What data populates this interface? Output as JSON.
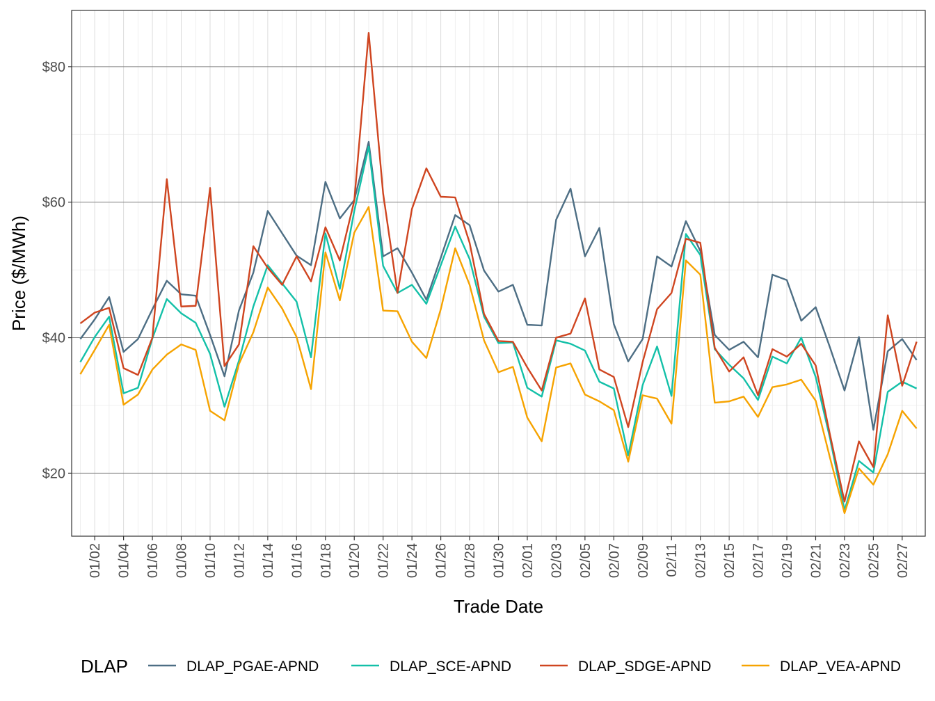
{
  "chart_data": {
    "type": "line",
    "xlabel": "Trade Date",
    "ylabel": "Price ($/MWh)",
    "ylim": [
      10.7,
      88.3
    ],
    "y_ticks": [
      20,
      40,
      60,
      80
    ],
    "y_tick_labels": [
      "$20",
      "$40",
      "$60",
      "$80"
    ],
    "x_tick_labels": [
      "01/02",
      "01/04",
      "01/06",
      "01/08",
      "01/10",
      "01/12",
      "01/14",
      "01/16",
      "01/18",
      "01/20",
      "01/22",
      "01/24",
      "01/26",
      "01/28",
      "01/30",
      "02/01",
      "02/03",
      "02/05",
      "02/07",
      "02/09",
      "02/11",
      "02/13",
      "02/15",
      "02/17",
      "02/19",
      "02/21",
      "02/23",
      "02/25",
      "02/27"
    ],
    "x_tick_days": [
      2,
      4,
      6,
      8,
      10,
      12,
      14,
      16,
      18,
      20,
      22,
      24,
      26,
      28,
      30,
      32,
      34,
      36,
      38,
      40,
      42,
      44,
      46,
      48,
      50,
      52,
      54,
      56,
      58
    ],
    "x_range_days": [
      0.4,
      59.6
    ],
    "grid": true,
    "legend": {
      "title": "DLAP",
      "position": "bottom"
    },
    "x_dates": [
      "01/01",
      "01/02",
      "01/03",
      "01/04",
      "01/05",
      "01/06",
      "01/07",
      "01/08",
      "01/09",
      "01/10",
      "01/11",
      "01/12",
      "01/13",
      "01/14",
      "01/15",
      "01/16",
      "01/17",
      "01/18",
      "01/19",
      "01/20",
      "01/21",
      "01/22",
      "01/23",
      "01/24",
      "01/25",
      "01/26",
      "01/27",
      "01/28",
      "01/29",
      "01/30",
      "01/31",
      "02/01",
      "02/02",
      "02/03",
      "02/04",
      "02/05",
      "02/06",
      "02/07",
      "02/08",
      "02/09",
      "02/10",
      "02/11",
      "02/12",
      "02/13",
      "02/14",
      "02/15",
      "02/16",
      "02/17",
      "02/18",
      "02/19",
      "02/20",
      "02/21",
      "02/22",
      "02/23",
      "02/24",
      "02/25",
      "02/26",
      "02/27",
      "02/28"
    ],
    "series": [
      {
        "name": "DLAP_PGAE-APND",
        "color": "#4d6e84",
        "values": [
          39.8,
          42.7,
          46.0,
          37.9,
          39.8,
          44.2,
          48.4,
          46.4,
          46.2,
          40.4,
          34.3,
          44.0,
          49.6,
          58.7,
          55.4,
          52.1,
          50.7,
          63.0,
          57.6,
          60.3,
          68.9,
          52.0,
          53.2,
          49.6,
          45.6,
          51.8,
          58.1,
          56.6,
          49.9,
          46.8,
          47.8,
          41.9,
          41.8,
          57.4,
          62.0,
          52.0,
          56.2,
          42.0,
          36.5,
          39.8,
          52.0,
          50.5,
          57.2,
          52.8,
          40.4,
          38.2,
          39.4,
          37.1,
          49.3,
          48.5,
          42.5,
          44.5,
          38.5,
          32.2,
          40.1,
          26.4,
          38.0,
          39.8,
          36.7
        ]
      },
      {
        "name": "DLAP_SCE-APND",
        "color": "#13c0a8",
        "values": [
          36.4,
          40.1,
          43.1,
          31.8,
          32.6,
          39.9,
          45.7,
          43.6,
          42.2,
          37.6,
          29.8,
          36.6,
          44.6,
          50.7,
          48.0,
          45.3,
          37.1,
          55.4,
          47.2,
          58.7,
          68.2,
          50.6,
          46.6,
          47.8,
          45.0,
          50.7,
          56.4,
          51.6,
          43.1,
          39.2,
          39.3,
          32.6,
          31.3,
          39.6,
          39.1,
          38.1,
          33.5,
          32.5,
          22.6,
          33.0,
          38.7,
          31.4,
          55.3,
          52.2,
          38.3,
          36.0,
          34.0,
          30.8,
          37.2,
          36.2,
          40.0,
          34.2,
          25.1,
          14.5,
          21.8,
          20.1,
          32.0,
          33.5,
          32.5
        ]
      },
      {
        "name": "DLAP_SDGE-APND",
        "color": "#cf4520",
        "values": [
          42.1,
          43.7,
          44.4,
          35.5,
          34.5,
          40.0,
          63.4,
          44.6,
          44.7,
          62.1,
          35.8,
          39.0,
          53.5,
          50.3,
          47.8,
          52.0,
          48.3,
          56.3,
          51.4,
          60.2,
          85.0,
          61.3,
          46.6,
          59.0,
          65.0,
          60.8,
          60.7,
          54.0,
          43.5,
          39.5,
          39.4,
          35.6,
          32.2,
          40.0,
          40.6,
          45.8,
          35.3,
          34.2,
          26.8,
          36.4,
          44.2,
          46.6,
          54.6,
          54.0,
          38.5,
          35.0,
          37.1,
          31.5,
          38.3,
          37.2,
          39.1,
          35.9,
          25.6,
          15.8,
          24.7,
          20.9,
          43.3,
          32.9,
          39.4
        ]
      },
      {
        "name": "DLAP_VEA-APND",
        "color": "#f6a300",
        "values": [
          34.6,
          38.2,
          41.9,
          30.1,
          31.6,
          35.3,
          37.5,
          39.0,
          38.2,
          29.2,
          27.8,
          36.1,
          40.8,
          47.4,
          44.3,
          40.1,
          32.4,
          52.6,
          45.5,
          55.5,
          59.3,
          44.0,
          43.9,
          39.4,
          37.0,
          44.2,
          53.2,
          47.8,
          39.6,
          34.9,
          35.7,
          28.2,
          24.7,
          35.6,
          36.2,
          31.6,
          30.6,
          29.3,
          21.7,
          31.5,
          31.0,
          27.3,
          51.4,
          49.3,
          30.4,
          30.6,
          31.3,
          28.3,
          32.7,
          33.1,
          33.8,
          30.7,
          22.2,
          14.1,
          20.7,
          18.3,
          22.8,
          29.2,
          26.6
        ]
      }
    ]
  }
}
